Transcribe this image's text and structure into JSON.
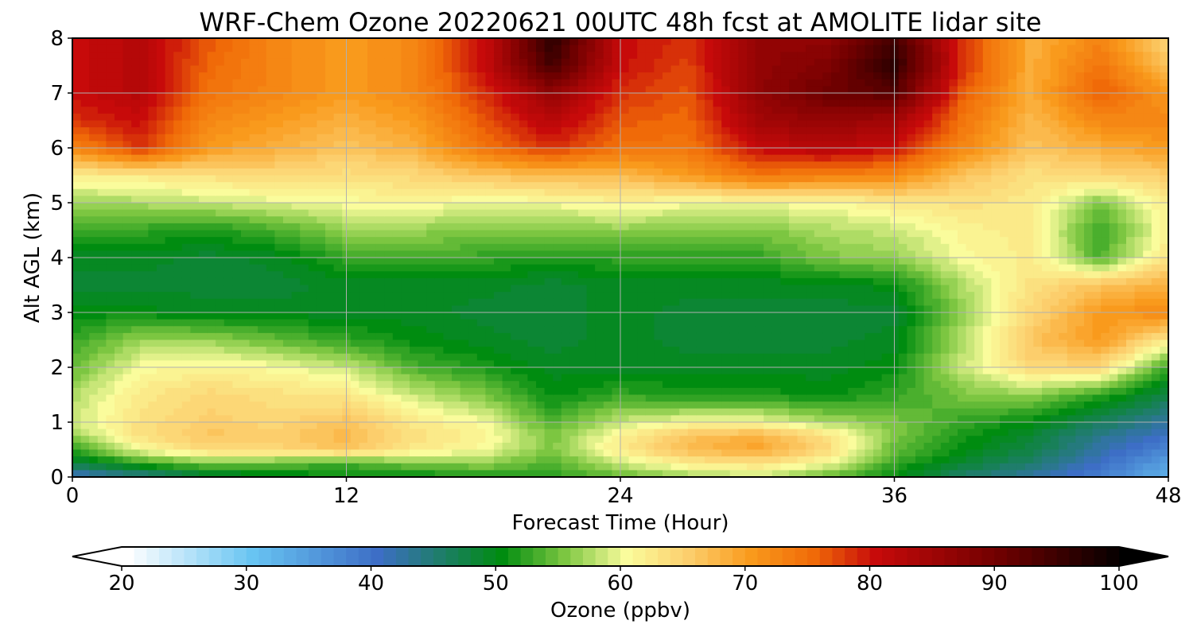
{
  "chart_data": {
    "type": "heatmap",
    "title": "WRF-Chem Ozone  20220621 00UTC 48h fcst at AMOLITE lidar site",
    "xlabel": "Forecast Time (Hour)",
    "ylabel": "Alt AGL (km)",
    "xlim": [
      0,
      48
    ],
    "ylim": [
      0,
      8
    ],
    "x_ticks": [
      "0",
      "12",
      "24",
      "36",
      "48"
    ],
    "y_ticks": [
      "0",
      "1",
      "2",
      "3",
      "4",
      "5",
      "6",
      "7",
      "8"
    ],
    "grid": true,
    "x": [
      0,
      3,
      6,
      9,
      12,
      15,
      18,
      21,
      24,
      27,
      30,
      33,
      36,
      39,
      42,
      45,
      48
    ],
    "y": [
      0,
      0.25,
      0.5,
      0.75,
      1,
      1.5,
      2,
      2.5,
      3,
      3.5,
      4,
      4.5,
      5,
      5.5,
      6,
      6.5,
      7,
      7.5,
      8
    ],
    "z": [
      [
        40,
        43,
        47,
        49,
        50,
        50,
        51,
        52,
        54,
        56,
        58,
        54,
        50,
        45,
        42,
        38,
        32
      ],
      [
        47,
        52,
        55,
        54,
        53,
        55,
        56,
        53,
        58,
        62,
        63,
        60,
        52,
        48,
        45,
        40,
        34
      ],
      [
        52,
        60,
        64,
        64,
        66,
        62,
        60,
        55,
        62,
        67,
        69,
        64,
        54,
        50,
        47,
        42,
        37
      ],
      [
        56,
        63,
        66,
        65,
        67,
        63,
        61,
        55,
        61,
        66,
        68,
        63,
        55,
        51,
        48,
        43,
        40
      ],
      [
        58,
        63,
        65,
        64,
        66,
        62,
        60,
        53,
        58,
        60,
        60,
        57,
        55,
        52,
        50,
        46,
        42
      ],
      [
        57,
        62,
        64,
        63,
        62,
        58,
        55,
        50,
        52,
        51,
        51,
        50,
        52,
        55,
        56,
        52,
        47
      ],
      [
        54,
        60,
        61,
        60,
        58,
        53,
        51,
        49,
        49,
        49,
        49,
        49,
        50,
        58,
        64,
        64,
        52
      ],
      [
        52,
        56,
        56,
        54,
        52,
        50,
        49,
        48,
        49,
        48,
        48,
        48,
        49,
        57,
        66,
        70,
        62
      ],
      [
        50,
        50,
        49,
        49,
        49,
        49,
        48,
        48,
        49,
        48,
        48,
        48,
        48,
        56,
        64,
        70,
        72
      ],
      [
        48,
        48,
        48,
        48,
        49,
        49,
        49,
        48,
        49,
        49,
        49,
        49,
        50,
        57,
        63,
        66,
        68
      ],
      [
        49,
        49,
        48,
        49,
        52,
        53,
        52,
        51,
        52,
        52,
        52,
        55,
        56,
        60,
        62,
        53,
        63
      ],
      [
        53,
        52,
        51,
        53,
        56,
        56,
        55,
        55,
        56,
        55,
        55,
        57,
        58,
        61,
        62,
        52,
        61
      ],
      [
        56,
        57,
        58,
        59,
        60,
        61,
        59,
        60,
        61,
        60,
        60,
        60,
        62,
        63,
        62,
        55,
        62
      ],
      [
        62,
        62,
        63,
        64,
        63,
        64,
        66,
        67,
        67,
        70,
        74,
        73,
        72,
        66,
        63,
        64,
        65
      ],
      [
        72,
        78,
        70,
        68,
        66,
        68,
        74,
        78,
        74,
        74,
        80,
        82,
        80,
        72,
        66,
        68,
        70
      ],
      [
        78,
        80,
        72,
        70,
        68,
        70,
        76,
        82,
        76,
        75,
        84,
        86,
        84,
        74,
        67,
        72,
        72
      ],
      [
        80,
        82,
        74,
        72,
        70,
        72,
        78,
        86,
        78,
        76,
        86,
        90,
        92,
        76,
        68,
        76,
        70
      ],
      [
        80,
        82,
        75,
        72,
        70,
        72,
        80,
        94,
        80,
        77,
        86,
        88,
        96,
        78,
        68,
        74,
        66
      ],
      [
        80,
        82,
        76,
        72,
        70,
        72,
        80,
        96,
        80,
        78,
        86,
        86,
        94,
        78,
        68,
        72,
        64
      ]
    ],
    "colorbar": {
      "label": "Ozone  (ppbv)",
      "min": 20,
      "max": 100,
      "ticks": [
        "20",
        "30",
        "40",
        "50",
        "60",
        "70",
        "80",
        "90",
        "100"
      ],
      "extend": "both",
      "stops": [
        [
          20,
          "#ffffff"
        ],
        [
          30,
          "#68c4f2"
        ],
        [
          40,
          "#3d6ec6"
        ],
        [
          50,
          "#008c10"
        ],
        [
          55,
          "#7cc641"
        ],
        [
          60,
          "#fafc9c"
        ],
        [
          65,
          "#fcce6c"
        ],
        [
          70,
          "#f99a1c"
        ],
        [
          75,
          "#f06a08"
        ],
        [
          80,
          "#c70a0a"
        ],
        [
          90,
          "#6e0000"
        ],
        [
          100,
          "#000000"
        ]
      ]
    }
  }
}
